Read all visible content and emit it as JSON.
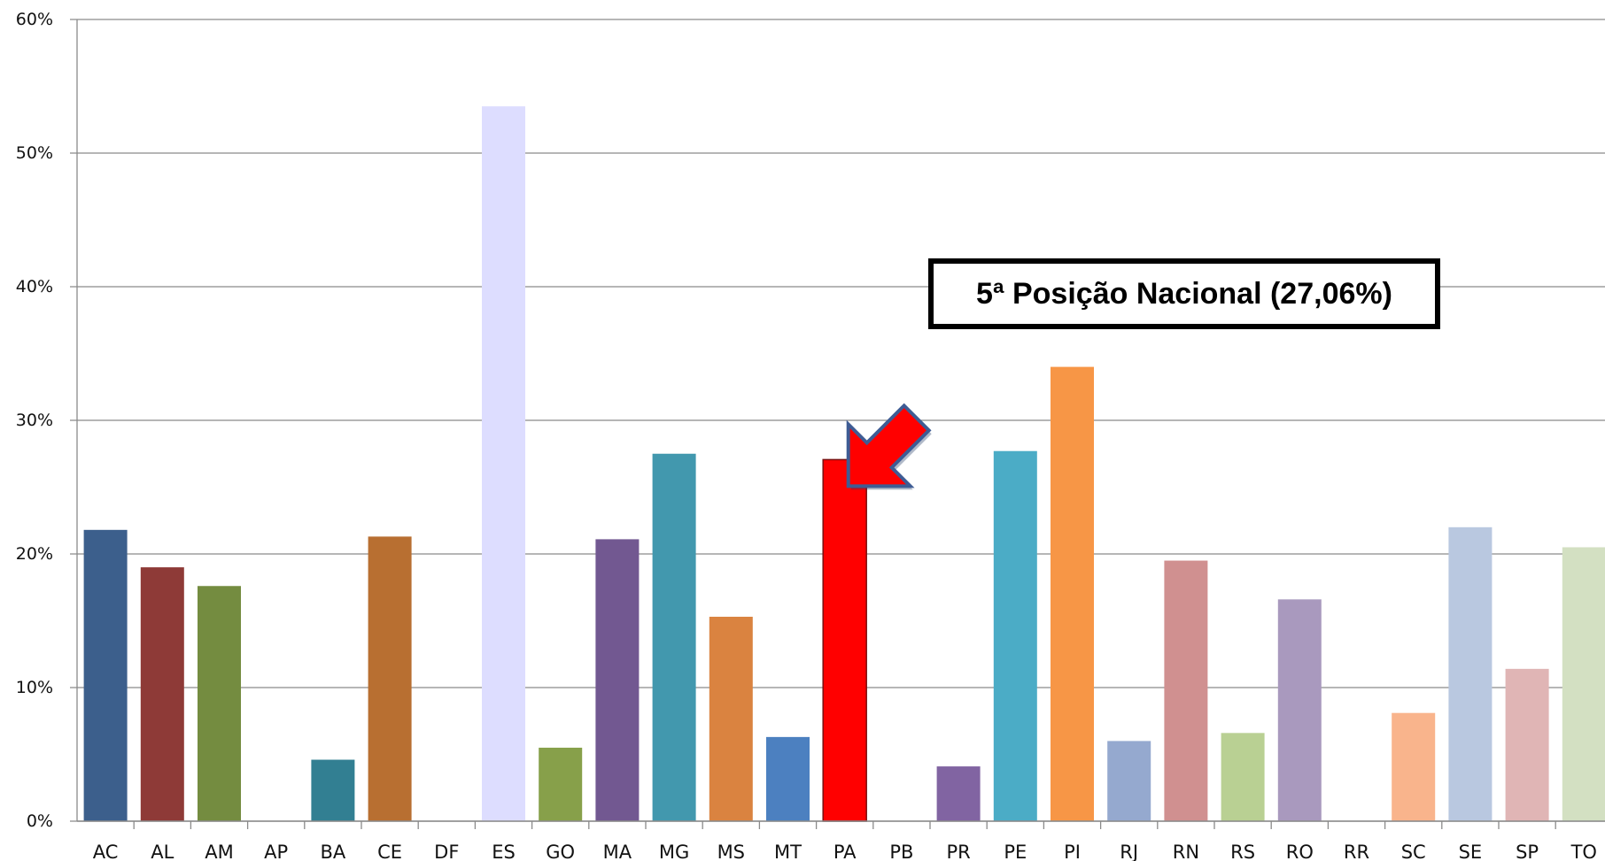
{
  "chart_data": {
    "type": "bar",
    "title": "",
    "xlabel": "",
    "ylabel": "",
    "ylim": [
      0,
      60
    ],
    "ytick_values": [
      0,
      10,
      20,
      30,
      40,
      50,
      60
    ],
    "ytick_labels": [
      "0%",
      "10%",
      "20%",
      "30%",
      "40%",
      "50%",
      "60%"
    ],
    "grid": true,
    "legend": "none",
    "categories": [
      "AC",
      "AL",
      "AM",
      "AP",
      "BA",
      "CE",
      "DF",
      "ES",
      "GO",
      "MA",
      "MG",
      "MS",
      "MT",
      "PA",
      "PB",
      "PR",
      "PE",
      "PI",
      "RJ",
      "RN",
      "RS",
      "RO",
      "RR",
      "SC",
      "SE",
      "SP",
      "TO"
    ],
    "values": [
      21.8,
      19.0,
      17.6,
      0,
      4.6,
      21.3,
      0,
      53.5,
      5.5,
      21.1,
      27.5,
      15.3,
      6.3,
      27.06,
      0,
      4.1,
      27.7,
      34.0,
      6.0,
      19.5,
      6.6,
      16.6,
      0,
      8.1,
      22.0,
      11.4,
      20.5
    ],
    "colors": [
      "#3C5F8C",
      "#8E3A37",
      "#748C40",
      "#4A4A4A",
      "#327F92",
      "#B86F31",
      "#4A4A4A",
      "#DDDDFF",
      "#87A04A",
      "#725891",
      "#4298AE",
      "#DA8340",
      "#4C80C0",
      "#FF0000",
      "#4A4A4A",
      "#8164A2",
      "#4BACC6",
      "#F79646",
      "#95A9CF",
      "#D09090",
      "#B9D093",
      "#A999BE",
      "#4A4A4A",
      "#F9B48C",
      "#B9C8E0",
      "#E0B5B5",
      "#D3E0C2"
    ],
    "annotation": {
      "text": "5ª Posição Nacional (27,06%)",
      "target": "PA"
    }
  }
}
